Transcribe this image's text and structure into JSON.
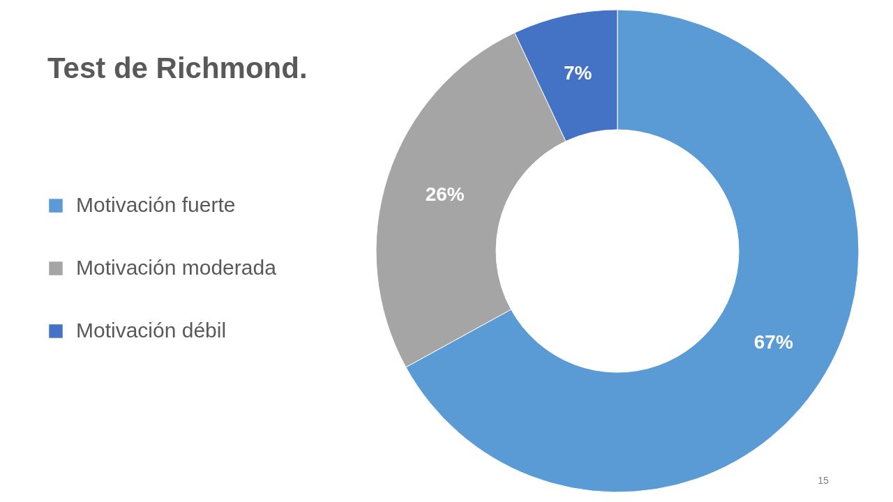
{
  "chart_data": {
    "type": "donut",
    "title": "Test de Richmond.",
    "categories": [
      "Motivación fuerte",
      "Motivación moderada",
      "Motivación débil"
    ],
    "values": [
      67,
      26,
      7
    ],
    "colors": [
      "#5b9bd5",
      "#a5a5a5",
      "#4472c4"
    ],
    "value_labels": [
      "67%",
      "26%",
      "7%"
    ],
    "legend": "left",
    "annotations": [
      "15"
    ]
  }
}
